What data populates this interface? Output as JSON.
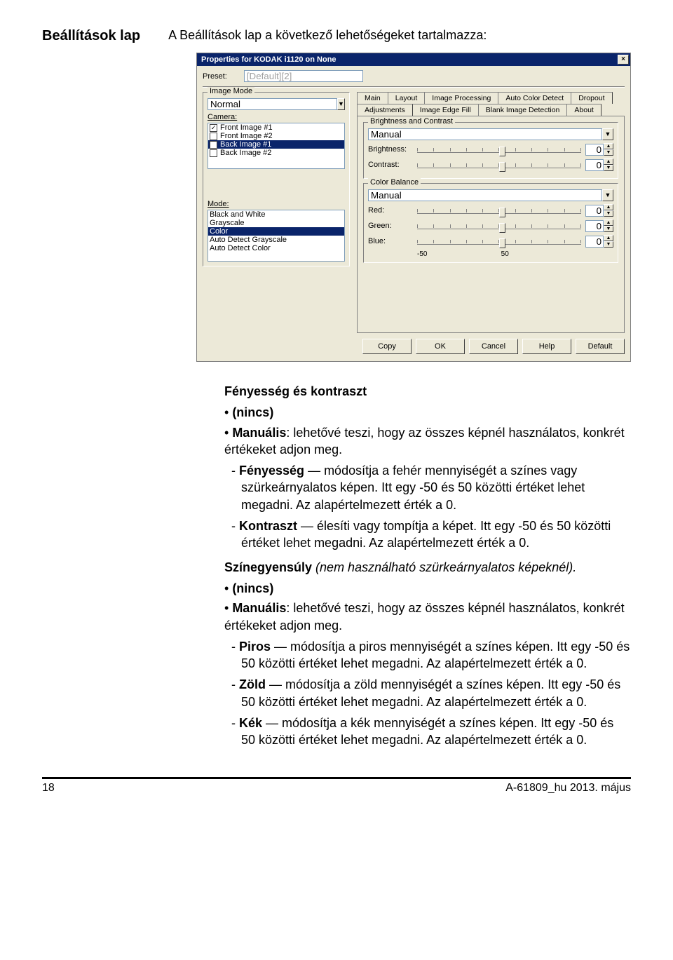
{
  "page": {
    "title": "Beállítások lap",
    "intro": "A Beállítások lap a következő lehetőségeket tartalmazza:"
  },
  "dialog": {
    "title": "Properties for KODAK i1120 on None",
    "preset_label": "Preset:",
    "preset_value": "[Default][2]",
    "image_mode": {
      "group": "Image Mode",
      "value": "Normal"
    },
    "camera": {
      "label": "Camera:",
      "items": [
        {
          "checked": true,
          "text": "Front Image #1"
        },
        {
          "checked": false,
          "text": "Front Image #2"
        },
        {
          "checked": false,
          "text": "Back Image #1",
          "selected": true
        },
        {
          "checked": false,
          "text": "Back Image #2"
        }
      ]
    },
    "mode": {
      "label": "Mode:",
      "items": [
        "Black and White",
        "Grayscale",
        "Color",
        "Auto Detect Grayscale",
        "Auto Detect Color"
      ],
      "selected": "Color"
    },
    "tabs_row1": [
      "Main",
      "Layout",
      "Image Processing",
      "Auto Color Detect",
      "Dropout"
    ],
    "tabs_row2": [
      "Adjustments",
      "Image Edge Fill",
      "Blank Image Detection",
      "About"
    ],
    "tabs_active": "Adjustments",
    "bc": {
      "group": "Brightness and Contrast",
      "mode": "Manual",
      "brightness_label": "Brightness:",
      "brightness_value": "0",
      "contrast_label": "Contrast:",
      "contrast_value": "0"
    },
    "cb": {
      "group": "Color Balance",
      "mode": "Manual",
      "red_label": "Red:",
      "red_value": "0",
      "green_label": "Green:",
      "green_value": "0",
      "blue_label": "Blue:",
      "blue_value": "0",
      "scale_min": "-50",
      "scale_max": "50"
    },
    "buttons": [
      "Copy",
      "OK",
      "Cancel",
      "Help",
      "Default"
    ]
  },
  "doc": {
    "h_bc": "Fényesség és kontraszt",
    "none": "(nincs)",
    "manual_line": "Manuális: lehetővé teszi, hogy az összes képnél használatos, konkrét értékeket adjon meg.",
    "manual_b": "Manuális",
    "brightness_b": "Fényesség",
    "brightness_rest": " — módosítja a fehér mennyiségét a színes vagy szürkeárnyalatos képen. Itt egy -50 és 50 közötti értéket lehet megadni. Az alapértelmezett érték a 0.",
    "contrast_b": "Kontraszt",
    "contrast_rest": " — élesíti vagy tompítja a képet. Itt egy -50 és 50 közötti értéket lehet megadni. Az alapértelmezett érték a 0.",
    "h_cb_b": "Színegyensúly",
    "h_cb_i": " (nem használható szürkeárnyalatos képeknél).",
    "red_b": "Piros",
    "red_rest": " — módosítja a piros mennyiségét a színes képen. Itt egy -50 és 50 közötti értéket lehet megadni. Az alapértelmezett érték a 0.",
    "green_b": "Zöld",
    "green_rest": " — módosítja a zöld mennyiségét a színes képen. Itt egy -50 és 50 közötti értéket lehet megadni. Az alapértelmezett érték a 0.",
    "blue_b": "Kék",
    "blue_rest": " — módosítja a kék mennyiségét a színes képen. Itt egy -50 és 50 közötti értéket lehet megadni. Az alapértelmezett érték a 0."
  },
  "footer": {
    "page": "18",
    "doc_id": "A-61809_hu  2013. május"
  }
}
